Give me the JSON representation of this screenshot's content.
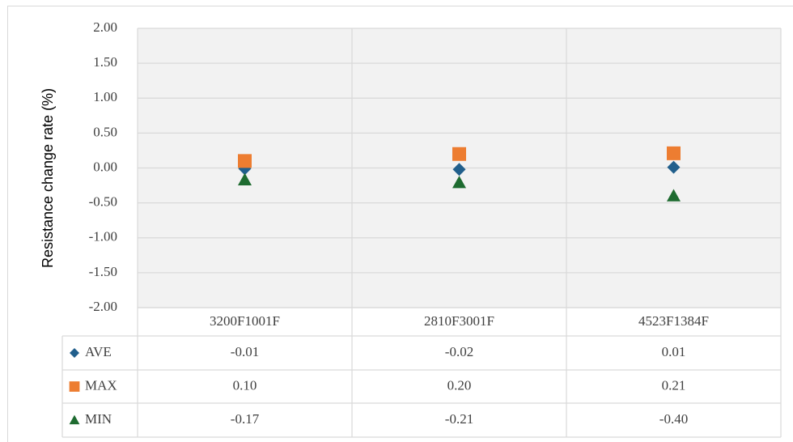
{
  "chart_data": {
    "type": "scatter",
    "y_label": "Resistance change rate (%)",
    "categories": [
      "3200F1001F",
      "2810F3001F",
      "4523F1384F"
    ],
    "series": [
      {
        "name": "AVE",
        "color": "#215f8c",
        "marker": "diamond",
        "values": [
          -0.01,
          -0.02,
          0.01
        ],
        "value_labels": [
          "-0.01",
          "-0.02",
          "0.01"
        ]
      },
      {
        "name": "MAX",
        "color": "#ed7d31",
        "marker": "square",
        "values": [
          0.1,
          0.2,
          0.21
        ],
        "value_labels": [
          "0.10",
          "0.20",
          "0.21"
        ]
      },
      {
        "name": "MIN",
        "color": "#1e6b30",
        "marker": "triangle",
        "values": [
          -0.17,
          -0.21,
          -0.4
        ],
        "value_labels": [
          "-0.17",
          "-0.21",
          "-0.40"
        ]
      }
    ],
    "ylim": [
      -2,
      2
    ],
    "yticks": [
      {
        "value": -2,
        "label": "-2.00"
      },
      {
        "value": -1.5,
        "label": "-1.50"
      },
      {
        "value": -1,
        "label": "-1.00"
      },
      {
        "value": -0.5,
        "label": "-0.50"
      },
      {
        "value": 0,
        "label": "0.00"
      },
      {
        "value": 0.5,
        "label": "0.50"
      },
      {
        "value": 1,
        "label": "1.00"
      },
      {
        "value": 1.5,
        "label": "1.50"
      },
      {
        "value": 2,
        "label": "2.00"
      }
    ],
    "grid": true
  }
}
